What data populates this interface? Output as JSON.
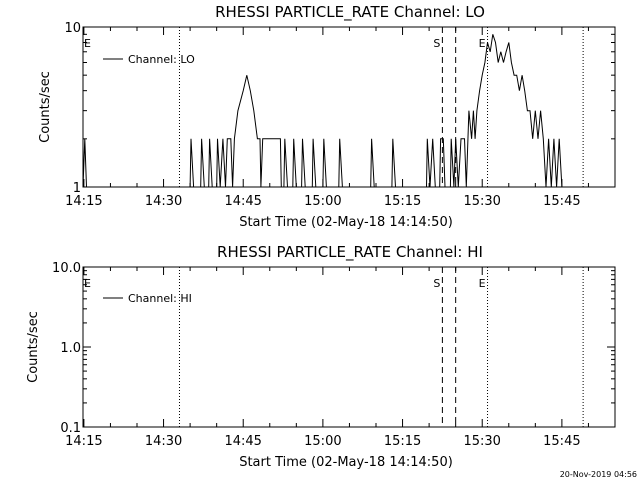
{
  "chart_data": [
    {
      "type": "line",
      "title": "RHESSI PARTICLE_RATE Channel: LO",
      "xlabel": "Start Time (02-May-18 14:14:50)",
      "ylabel": "Counts/sec",
      "y_scale": "log",
      "ylim": [
        1,
        10
      ],
      "xlim": [
        "14:14:50",
        "15:55:00"
      ],
      "x_ticks": [
        "14:15",
        "14:30",
        "14:45",
        "15:00",
        "15:15",
        "15:30",
        "15:45"
      ],
      "y_ticks": [
        "1",
        "10"
      ],
      "legend": {
        "entries": [
          "Channel: LO"
        ],
        "position": "top-left"
      },
      "markers": [
        {
          "label": "E",
          "time": "14:14:50",
          "style": "none"
        },
        {
          "label": "",
          "time": "14:33:00",
          "style": "dotted"
        },
        {
          "label": "S",
          "time": "15:22:30",
          "style": "dashed"
        },
        {
          "label": "",
          "time": "15:25:00",
          "style": "dashed"
        },
        {
          "label": "E",
          "time": "15:31:00",
          "style": "dotted"
        },
        {
          "label": "",
          "time": "15:49:00",
          "style": "dotted"
        }
      ],
      "series": [
        {
          "name": "Channel: LO",
          "points": [
            [
              "14:14:50",
              1
            ],
            [
              "14:15:10",
              2
            ],
            [
              "14:15:30",
              1
            ],
            [
              "14:33:00",
              1
            ],
            [
              "14:35:00",
              1
            ],
            [
              "14:35:10",
              2
            ],
            [
              "14:35:40",
              1
            ],
            [
              "14:37:00",
              1
            ],
            [
              "14:37:10",
              2
            ],
            [
              "14:37:40",
              1
            ],
            [
              "14:38:30",
              1
            ],
            [
              "14:38:40",
              2
            ],
            [
              "14:39:10",
              1
            ],
            [
              "14:40:00",
              1
            ],
            [
              "14:40:10",
              2
            ],
            [
              "14:40:40",
              1
            ],
            [
              "14:41:10",
              2
            ],
            [
              "14:41:40",
              1
            ],
            [
              "14:42:00",
              2
            ],
            [
              "14:42:40",
              2
            ],
            [
              "14:43:00",
              1
            ],
            [
              "14:43:20",
              2
            ],
            [
              "14:44:00",
              3
            ],
            [
              "14:45:00",
              4
            ],
            [
              "14:45:40",
              5
            ],
            [
              "14:46:20",
              4
            ],
            [
              "14:47:00",
              3
            ],
            [
              "14:47:40",
              2
            ],
            [
              "14:48:10",
              2
            ],
            [
              "14:48:20",
              1
            ],
            [
              "14:48:40",
              2
            ],
            [
              "14:52:00",
              2
            ],
            [
              "14:52:10",
              1
            ],
            [
              "14:52:40",
              1
            ],
            [
              "14:52:50",
              2
            ],
            [
              "14:53:20",
              1
            ],
            [
              "14:54:20",
              1
            ],
            [
              "14:54:30",
              2
            ],
            [
              "14:55:00",
              1
            ],
            [
              "14:56:00",
              1
            ],
            [
              "14:56:10",
              2
            ],
            [
              "14:56:40",
              1
            ],
            [
              "14:58:00",
              1
            ],
            [
              "14:58:10",
              2
            ],
            [
              "14:58:40",
              1
            ],
            [
              "15:00:00",
              1
            ],
            [
              "15:00:10",
              2
            ],
            [
              "15:00:40",
              1
            ],
            [
              "15:03:00",
              1
            ],
            [
              "15:03:10",
              2
            ],
            [
              "15:03:40",
              1
            ],
            [
              "15:09:00",
              1
            ],
            [
              "15:09:10",
              2
            ],
            [
              "15:09:40",
              1
            ],
            [
              "15:13:00",
              1
            ],
            [
              "15:13:10",
              2
            ],
            [
              "15:13:40",
              1
            ],
            [
              "15:19:30",
              1
            ],
            [
              "15:19:40",
              2
            ],
            [
              "15:20:10",
              1
            ],
            [
              "15:20:40",
              2
            ],
            [
              "15:21:10",
              1
            ],
            [
              "15:22:00",
              1
            ],
            [
              "15:22:10",
              2
            ],
            [
              "15:22:40",
              2
            ],
            [
              "15:23:00",
              1
            ],
            [
              "15:24:00",
              1
            ],
            [
              "15:24:10",
              2
            ],
            [
              "15:24:40",
              1
            ],
            [
              "15:25:00",
              2
            ],
            [
              "15:25:30",
              1
            ],
            [
              "15:26:00",
              2
            ],
            [
              "15:26:40",
              2
            ],
            [
              "15:27:00",
              1
            ],
            [
              "15:27:30",
              3
            ],
            [
              "15:28:00",
              2
            ],
            [
              "15:28:20",
              3
            ],
            [
              "15:28:40",
              2
            ],
            [
              "15:29:00",
              3
            ],
            [
              "15:29:30",
              4
            ],
            [
              "15:30:00",
              5
            ],
            [
              "15:30:30",
              6
            ],
            [
              "15:31:00",
              8
            ],
            [
              "15:31:30",
              7
            ],
            [
              "15:32:00",
              9
            ],
            [
              "15:32:30",
              8
            ],
            [
              "15:33:00",
              6
            ],
            [
              "15:33:30",
              7
            ],
            [
              "15:34:00",
              6
            ],
            [
              "15:34:30",
              7
            ],
            [
              "15:35:00",
              8
            ],
            [
              "15:35:30",
              6
            ],
            [
              "15:36:00",
              5
            ],
            [
              "15:36:30",
              5
            ],
            [
              "15:37:00",
              4
            ],
            [
              "15:37:30",
              5
            ],
            [
              "15:38:00",
              4
            ],
            [
              "15:38:30",
              3
            ],
            [
              "15:39:00",
              3
            ],
            [
              "15:39:30",
              2
            ],
            [
              "15:40:00",
              3
            ],
            [
              "15:40:30",
              2
            ],
            [
              "15:41:00",
              3
            ],
            [
              "15:41:30",
              2
            ],
            [
              "15:42:00",
              1
            ],
            [
              "15:42:30",
              2
            ],
            [
              "15:43:00",
              1
            ],
            [
              "15:43:30",
              2
            ],
            [
              "15:44:00",
              1
            ],
            [
              "15:44:30",
              2
            ],
            [
              "15:45:00",
              1
            ]
          ]
        }
      ]
    },
    {
      "type": "line",
      "title": "RHESSI PARTICLE_RATE Channel: HI",
      "xlabel": "Start Time (02-May-18 14:14:50)",
      "ylabel": "Counts/sec",
      "y_scale": "log",
      "ylim": [
        0.1,
        10
      ],
      "xlim": [
        "14:14:50",
        "15:55:00"
      ],
      "x_ticks": [
        "14:15",
        "14:30",
        "14:45",
        "15:00",
        "15:15",
        "15:30",
        "15:45"
      ],
      "y_ticks": [
        "0.1",
        "1.0",
        "10.0"
      ],
      "legend": {
        "entries": [
          "Channel: HI"
        ],
        "position": "top-left"
      },
      "markers": [
        {
          "label": "E",
          "time": "14:14:50",
          "style": "none"
        },
        {
          "label": "",
          "time": "14:33:00",
          "style": "dotted"
        },
        {
          "label": "S",
          "time": "15:22:30",
          "style": "dashed"
        },
        {
          "label": "",
          "time": "15:25:00",
          "style": "dashed"
        },
        {
          "label": "E",
          "time": "15:31:00",
          "style": "dotted"
        },
        {
          "label": "",
          "time": "15:49:00",
          "style": "dotted"
        }
      ],
      "series": [
        {
          "name": "Channel: HI",
          "points": []
        }
      ]
    }
  ],
  "footer": {
    "timestamp": "20-Nov-2019 04:56"
  }
}
